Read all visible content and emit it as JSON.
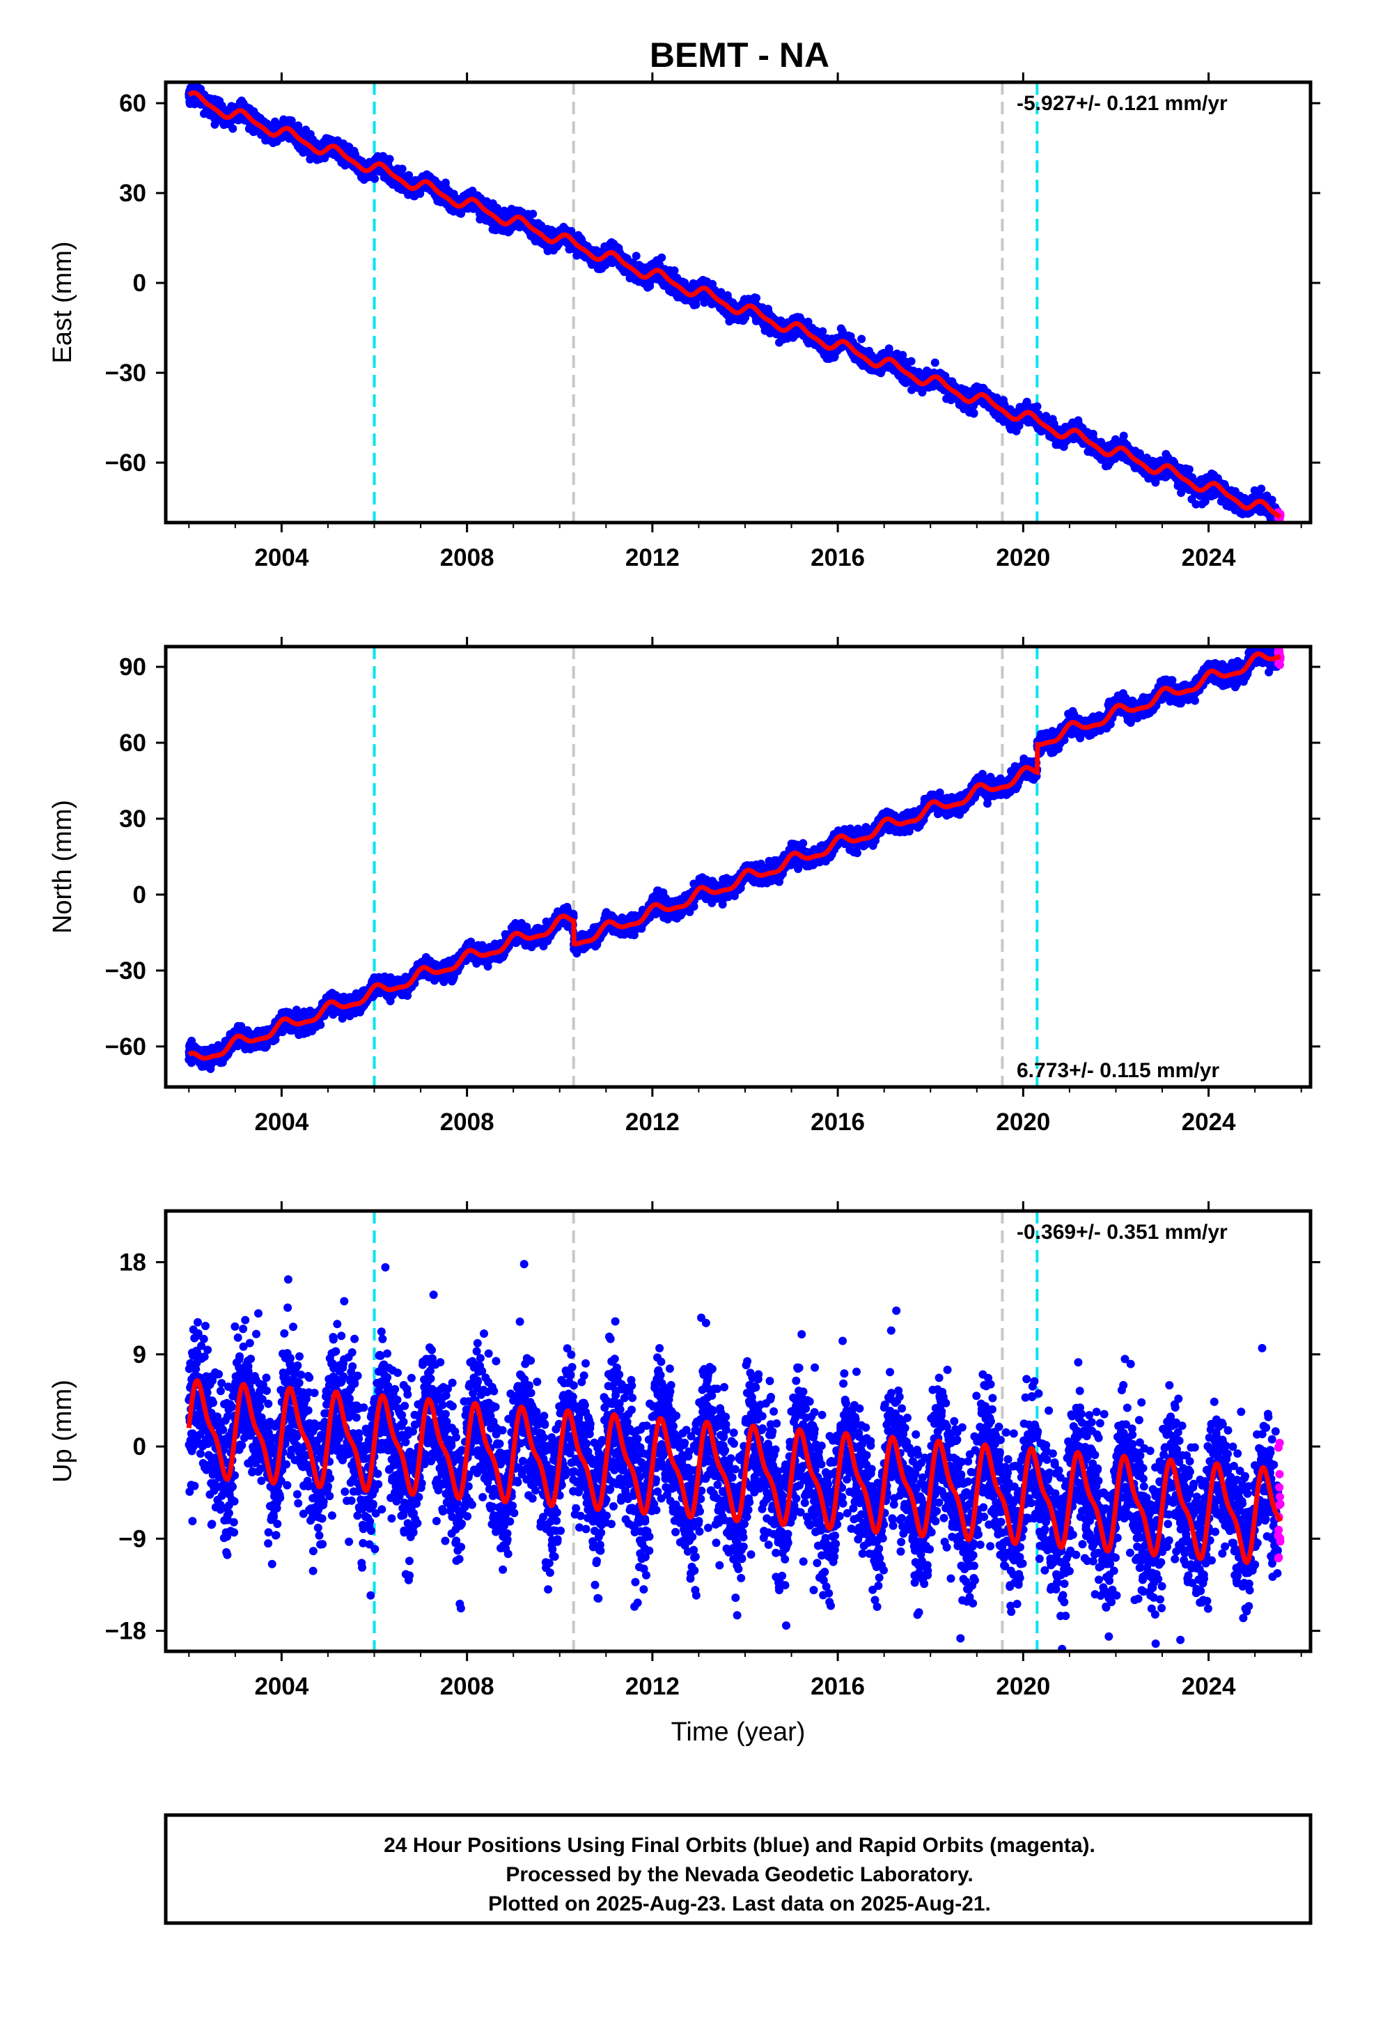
{
  "title": "BEMT - NA",
  "footer": {
    "line1": "24 Hour Positions Using Final Orbits (blue) and Rapid Orbits (magenta).",
    "line2": "Processed by the Nevada Geodetic Laboratory.",
    "line3": "Plotted on 2025-Aug-23. Last data on 2025-Aug-21."
  },
  "colors": {
    "final": "#0000ff",
    "rapid": "#ff00ff",
    "model": "#ff0000",
    "equipment_change": "#00e5ee",
    "other_event": "#c8c8c8"
  },
  "chart_data": [
    {
      "type": "scatter",
      "ylabel": "East (mm)",
      "xlabel": "",
      "xlim": [
        2001.5,
        2026.2
      ],
      "ylim": [
        -80,
        67
      ],
      "xticks": [
        "2004",
        "2008",
        "2012",
        "2016",
        "2020",
        "2024"
      ],
      "yticks": [
        "60",
        "30",
        "0",
        "−30",
        "−60"
      ],
      "rate_label": "-5.927+/- 0.121 mm/yr",
      "rate_position": "top-right",
      "rate_mm_per_yr": -5.927,
      "intercept_at_2002": 62,
      "seasonal_amplitude": 1.8,
      "seasonal_phase": 0.3,
      "scatter_sd": 1.5,
      "offsets": [],
      "start_year": 2002.0,
      "end_year": 2025.55,
      "rapid_start_year": 2025.5,
      "cyan_lines": [
        2006.0,
        2020.3
      ],
      "gray_lines": [
        2010.3,
        2019.55
      ],
      "grid": false
    },
    {
      "type": "scatter",
      "ylabel": "North (mm)",
      "xlabel": "",
      "xlim": [
        2001.5,
        2026.2
      ],
      "ylim": [
        -76,
        98
      ],
      "xticks": [
        "2004",
        "2008",
        "2012",
        "2016",
        "2020",
        "2024"
      ],
      "yticks": [
        "90",
        "60",
        "30",
        "0",
        "−30",
        "−60"
      ],
      "rate_label": "6.773+/- 0.115 mm/yr",
      "rate_position": "bottom-right",
      "rate_mm_per_yr": 6.773,
      "intercept_at_2002": -66,
      "seasonal_amplitude": 2.2,
      "seasonal_phase": 1.2,
      "scatter_sd": 1.7,
      "offsets": [
        {
          "year": 2010.3,
          "value": -9
        },
        {
          "year": 2020.3,
          "value": 11
        }
      ],
      "start_year": 2002.0,
      "end_year": 2025.55,
      "rapid_start_year": 2025.5,
      "cyan_lines": [
        2006.0,
        2020.3
      ],
      "gray_lines": [
        2010.3,
        2019.55
      ],
      "grid": false
    },
    {
      "type": "scatter",
      "ylabel": "Up (mm)",
      "xlabel": "Time (year)",
      "xlim": [
        2001.5,
        2026.2
      ],
      "ylim": [
        -20,
        23
      ],
      "xticks": [
        "2004",
        "2008",
        "2012",
        "2016",
        "2020",
        "2024"
      ],
      "yticks": [
        "18",
        "9",
        "0",
        "−9",
        "−18"
      ],
      "rate_label": "-0.369+/- 0.351 mm/yr",
      "rate_position": "top-right",
      "rate_mm_per_yr": -0.369,
      "intercept_at_2002": 1.8,
      "seasonal_amplitude": 4.0,
      "seasonal_phase": 0.0,
      "scatter_sd": 3.4,
      "offsets": [],
      "start_year": 2002.0,
      "end_year": 2025.55,
      "rapid_start_year": 2025.5,
      "cyan_lines": [
        2006.0,
        2020.3
      ],
      "gray_lines": [
        2010.3,
        2019.55
      ],
      "grid": false
    }
  ]
}
